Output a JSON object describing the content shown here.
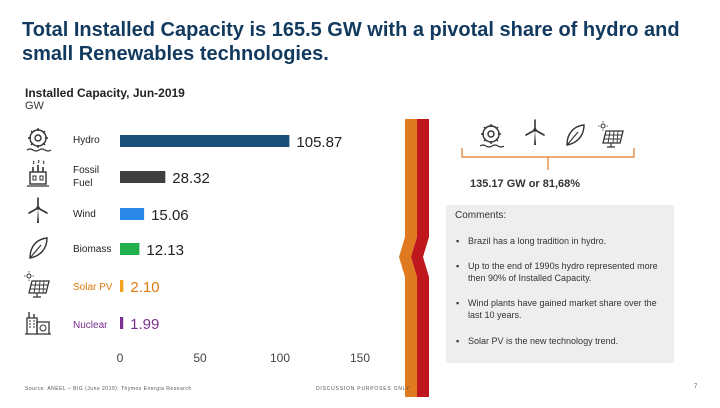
{
  "slide": {
    "title": "Total Installed Capacity is 165.5 GW with a pivotal share of hydro and small Renewables technologies.",
    "subtitle": "Installed Capacity, Jun-2019",
    "unit": "GW"
  },
  "chart_data": {
    "type": "bar",
    "orientation": "horizontal",
    "title": "Installed Capacity, Jun-2019",
    "ylabel": "GW",
    "categories": [
      "Hydro",
      "Fossil Fuel",
      "Wind",
      "Biomass",
      "Solar PV",
      "Nuclear"
    ],
    "values": [
      105.87,
      28.32,
      15.06,
      12.13,
      2.1,
      1.99
    ],
    "value_labels": [
      "105.87",
      "28.32",
      "15.06",
      "12.13",
      "2.10",
      "1.99"
    ],
    "colors": [
      "#1b4f7a",
      "#3f3f3f",
      "#2b88e8",
      "#21b04b",
      "#f2a21b",
      "#7b2f8e"
    ],
    "label_colors": [
      "#222222",
      "#222222",
      "#222222",
      "#222222",
      "#e07a10",
      "#7b2f8e"
    ],
    "xlim": [
      0,
      150
    ],
    "xticks": [
      "0",
      "50",
      "100",
      "150"
    ]
  },
  "icons": {
    "categories": [
      "hydro-icon",
      "fossil-fuel-icon",
      "wind-turbine-icon",
      "biomass-leaf-icon",
      "solar-panel-icon",
      "nuclear-plant-icon"
    ],
    "renewables": [
      "hydro-icon",
      "wind-turbine-icon",
      "biomass-leaf-icon",
      "solar-panel-icon"
    ]
  },
  "renewables_total": "135.17 GW or 81,68%",
  "comments": {
    "title": "Comments:",
    "items": [
      "Brazil has a long tradition in hydro.",
      "Up to the end of 1990s hydro represented more then 90% of Installed Capacity.",
      "Wind plants have gained market share over the last 10 years.",
      "Solar PV is the new technology trend."
    ]
  },
  "footer": {
    "source": "Source: ANEEL – BIG (June 2019); Thymos Energia Research",
    "disclaimer": "DISCUSSION PURPOSES ONLY",
    "page": "7"
  },
  "colors": {
    "title": "#123a5f",
    "accent_orange": "#e07a20",
    "accent_red": "#c0171e"
  }
}
